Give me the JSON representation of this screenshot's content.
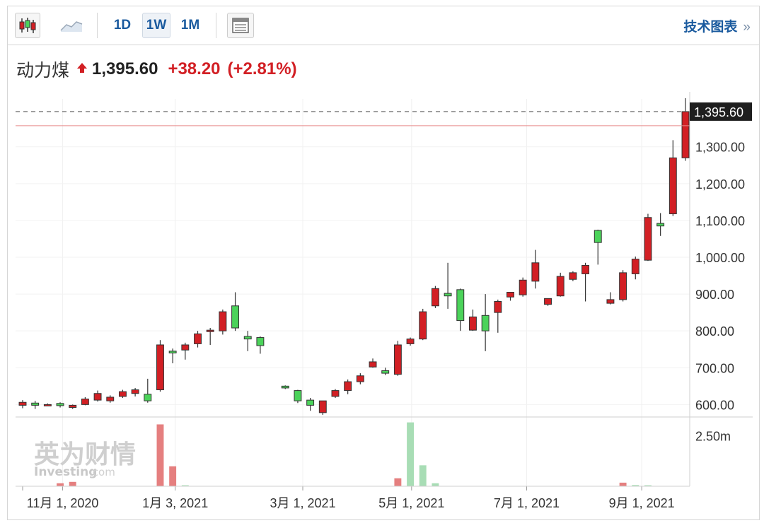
{
  "toolbar": {
    "ranges": [
      "1D",
      "1W",
      "1M"
    ],
    "active_range": "1W",
    "tech_chart_label": "技术图表",
    "more_icon": "»"
  },
  "quote": {
    "name": "动力煤",
    "price": "1,395.60",
    "change": "+38.20",
    "change_pct": "(+2.81%)",
    "direction": "up"
  },
  "watermark": {
    "brand_cn": "英为财情",
    "brand_en": "Investing",
    "brand_suffix": ".com"
  },
  "colors": {
    "up": "#d21f24",
    "down": "#4bd35a",
    "vol_up": "#e57f7f",
    "vol_down": "#a8ddb5",
    "accent": "#1a5a9e"
  },
  "chart_data": {
    "type": "candlestick",
    "title": "",
    "price_axis": {
      "ticks": [
        600,
        700,
        800,
        900,
        1000,
        1100,
        1200,
        1300
      ],
      "tick_labels": [
        "600.00",
        "700.00",
        "800.00",
        "900.00",
        "1,000.00",
        "1,100.00",
        "1,200.00",
        "1,300.00"
      ],
      "ylim": [
        570,
        1430
      ]
    },
    "volume_axis": {
      "tick_labels": [
        "2.50m"
      ],
      "tick_values": [
        2.5
      ],
      "ylim": [
        0,
        3.4
      ]
    },
    "x_tick_labels": [
      "11月 1, 2020",
      "1月 3, 2021",
      "3月 1, 2021",
      "5月 1, 2021",
      "7月 1, 2021",
      "9月 1, 2021"
    ],
    "x_tick_index": [
      3.2,
      12.2,
      22.4,
      31.1,
      40.3,
      49.5
    ],
    "current_price_label": "1,395.60",
    "current_price": 1395.6,
    "reference_line": 1357.4,
    "candles": [
      {
        "o": 598,
        "h": 612,
        "l": 590,
        "c": 606
      },
      {
        "o": 604,
        "h": 610,
        "l": 588,
        "c": 598
      },
      {
        "o": 600,
        "h": 603,
        "l": 597,
        "c": 600
      },
      {
        "o": 603,
        "h": 606,
        "l": 592,
        "c": 597
      },
      {
        "o": 592,
        "h": 600,
        "l": 588,
        "c": 598
      },
      {
        "o": 600,
        "h": 620,
        "l": 598,
        "c": 615
      },
      {
        "o": 612,
        "h": 638,
        "l": 608,
        "c": 630
      },
      {
        "o": 610,
        "h": 625,
        "l": 605,
        "c": 620
      },
      {
        "o": 622,
        "h": 640,
        "l": 618,
        "c": 635
      },
      {
        "o": 630,
        "h": 645,
        "l": 622,
        "c": 640
      },
      {
        "o": 628,
        "h": 670,
        "l": 605,
        "c": 610
      },
      {
        "o": 640,
        "h": 775,
        "l": 635,
        "c": 762
      },
      {
        "o": 745,
        "h": 752,
        "l": 712,
        "c": 740
      },
      {
        "o": 748,
        "h": 768,
        "l": 722,
        "c": 762
      },
      {
        "o": 765,
        "h": 800,
        "l": 755,
        "c": 792
      },
      {
        "o": 798,
        "h": 808,
        "l": 762,
        "c": 802
      },
      {
        "o": 800,
        "h": 858,
        "l": 790,
        "c": 852
      },
      {
        "o": 868,
        "h": 905,
        "l": 800,
        "c": 808
      },
      {
        "o": 785,
        "h": 800,
        "l": 745,
        "c": 778
      },
      {
        "o": 782,
        "h": 785,
        "l": 738,
        "c": 760
      },
      null,
      {
        "o": 650,
        "h": 652,
        "l": 642,
        "c": 645
      },
      {
        "o": 638,
        "h": 640,
        "l": 604,
        "c": 610
      },
      {
        "o": 612,
        "h": 618,
        "l": 583,
        "c": 598
      },
      {
        "o": 578,
        "h": 610,
        "l": 572,
        "c": 610
      },
      {
        "o": 622,
        "h": 642,
        "l": 618,
        "c": 638
      },
      {
        "o": 638,
        "h": 668,
        "l": 628,
        "c": 662
      },
      {
        "o": 662,
        "h": 685,
        "l": 655,
        "c": 678
      },
      {
        "o": 702,
        "h": 725,
        "l": 700,
        "c": 716
      },
      {
        "o": 692,
        "h": 700,
        "l": 680,
        "c": 685
      },
      {
        "o": 682,
        "h": 773,
        "l": 678,
        "c": 762
      },
      {
        "o": 765,
        "h": 782,
        "l": 760,
        "c": 778
      },
      {
        "o": 778,
        "h": 860,
        "l": 775,
        "c": 852
      },
      {
        "o": 868,
        "h": 922,
        "l": 862,
        "c": 915
      },
      {
        "o": 902,
        "h": 985,
        "l": 860,
        "c": 895
      },
      {
        "o": 912,
        "h": 915,
        "l": 800,
        "c": 828
      },
      {
        "o": 802,
        "h": 858,
        "l": 800,
        "c": 838
      },
      {
        "o": 842,
        "h": 900,
        "l": 745,
        "c": 800
      },
      {
        "o": 850,
        "h": 885,
        "l": 795,
        "c": 880
      },
      {
        "o": 892,
        "h": 905,
        "l": 882,
        "c": 905
      },
      {
        "o": 898,
        "h": 945,
        "l": 893,
        "c": 938
      },
      {
        "o": 935,
        "h": 1020,
        "l": 915,
        "c": 985
      },
      {
        "o": 872,
        "h": 888,
        "l": 868,
        "c": 888
      },
      {
        "o": 895,
        "h": 958,
        "l": 893,
        "c": 948
      },
      {
        "o": 940,
        "h": 962,
        "l": 935,
        "c": 958
      },
      {
        "o": 955,
        "h": 985,
        "l": 880,
        "c": 978
      },
      {
        "o": 1073,
        "h": 1075,
        "l": 980,
        "c": 1040
      },
      {
        "o": 875,
        "h": 905,
        "l": 872,
        "c": 885
      },
      {
        "o": 885,
        "h": 965,
        "l": 880,
        "c": 958
      },
      {
        "o": 955,
        "h": 1002,
        "l": 940,
        "c": 995
      },
      {
        "o": 992,
        "h": 1118,
        "l": 990,
        "c": 1108
      },
      {
        "o": 1092,
        "h": 1120,
        "l": 1058,
        "c": 1085
      },
      {
        "o": 1118,
        "h": 1318,
        "l": 1112,
        "c": 1270
      },
      {
        "o": 1270,
        "h": 1432,
        "l": 1262,
        "c": 1395.6
      }
    ],
    "volume": [
      0,
      0,
      0,
      0,
      0,
      0,
      0,
      0,
      0,
      0,
      0,
      3.1,
      1.0,
      0.05,
      0,
      0,
      0,
      0,
      0,
      0,
      null,
      0,
      0,
      0,
      0,
      0,
      0,
      0,
      0,
      0,
      0.4,
      3.2,
      1.05,
      0.15,
      0,
      0,
      0,
      0,
      0,
      0,
      0,
      0,
      0,
      0,
      0,
      0,
      0,
      0,
      0.18,
      0.06,
      0.05,
      0,
      0,
      0
    ],
    "volume_dir": [
      "",
      "",
      "",
      "",
      "up",
      "",
      "",
      "",
      "",
      "",
      "",
      "up",
      "up",
      "down",
      "",
      "",
      "",
      "",
      "",
      "",
      "",
      "",
      "",
      "",
      "",
      "",
      "",
      "",
      "",
      "",
      "up",
      "down",
      "down",
      "down",
      "",
      "",
      "",
      "",
      "",
      "",
      "",
      "",
      "",
      "",
      "",
      "",
      "",
      "",
      "up",
      "down",
      "down",
      "",
      "",
      ""
    ],
    "volume_extra": [
      {
        "idx": 3,
        "v": 0.15
      },
      {
        "idx": 4,
        "v": 0.22
      }
    ]
  }
}
